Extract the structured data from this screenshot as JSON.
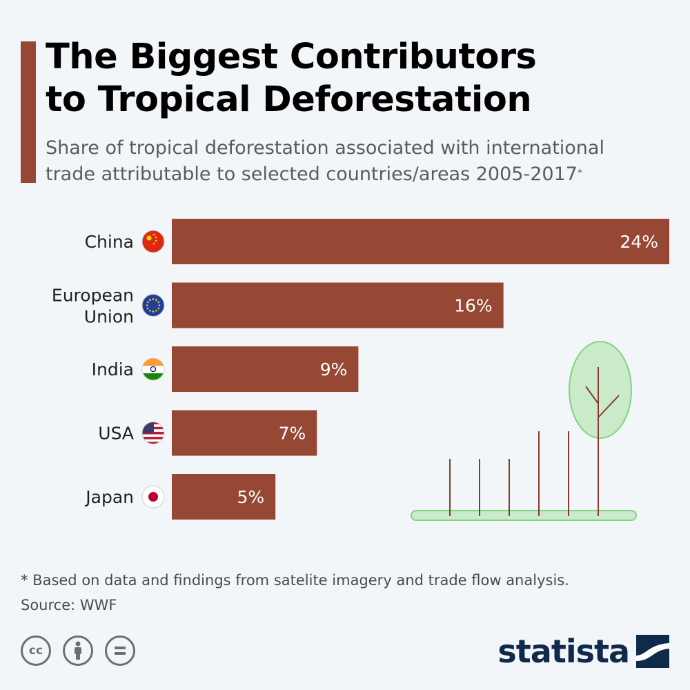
{
  "header": {
    "title_line1": "The Biggest Contributors",
    "title_line2": "to Tropical Deforestation",
    "subtitle_line1": "Share of tropical deforestation associated with international",
    "subtitle_line2": "trade attributable to selected countries/areas 2005-2017",
    "subtitle_mark": "*"
  },
  "colors": {
    "bar": "#974834",
    "accent": "#974834",
    "tree_fill": "#c9ebc9",
    "tree_outline": "#7fd37f",
    "trunk": "#8a3a2a"
  },
  "chart_data": {
    "type": "bar",
    "orientation": "horizontal",
    "categories": [
      "China",
      "European Union",
      "India",
      "USA",
      "Japan"
    ],
    "values": [
      24,
      16,
      9,
      7,
      5
    ],
    "value_labels": [
      "24%",
      "16%",
      "9%",
      "7%",
      "5%"
    ],
    "unit": "%",
    "flag_icons": [
      "china-flag-icon",
      "eu-flag-icon",
      "india-flag-icon",
      "usa-flag-icon",
      "japan-flag-icon"
    ],
    "xlim": [
      0,
      24
    ],
    "grid": false,
    "title": "",
    "xlabel": "",
    "ylabel": ""
  },
  "footer": {
    "footnote": "* Based on data and findings from satelite imagery and trade flow analysis.",
    "source": "Source: WWF",
    "license_icons": [
      "cc-icon",
      "attribution-icon",
      "no-derivatives-icon"
    ],
    "brand": "statista"
  }
}
